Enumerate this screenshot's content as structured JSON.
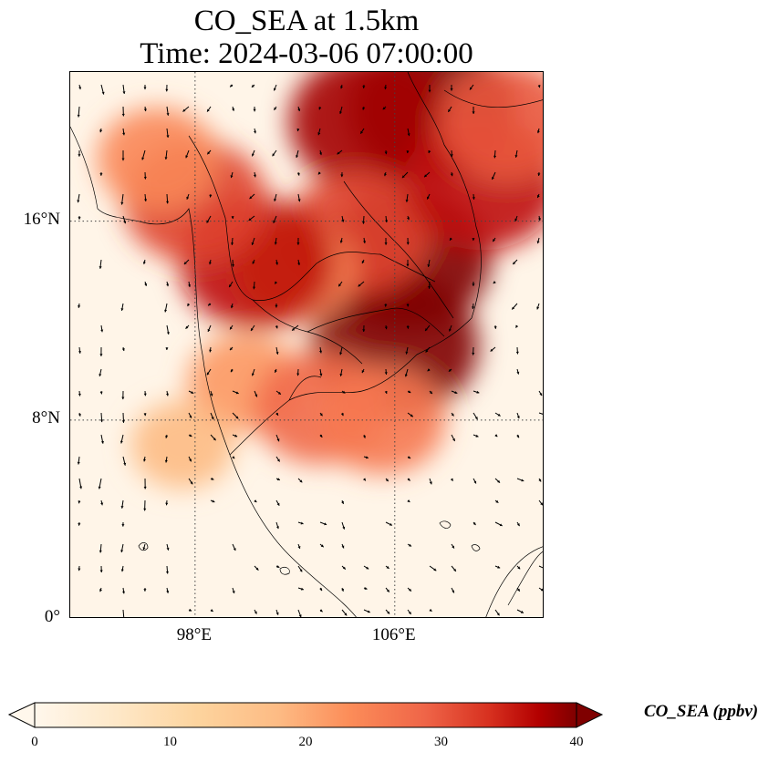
{
  "title_line_1": "CO_SEA at 1.5km",
  "title_line_2": "Time: 2024-03-06 07:00:00",
  "map": {
    "lat_range": [
      0,
      22
    ],
    "lon_range": [
      93,
      112
    ],
    "lat_ticks": [
      {
        "label": "16°N",
        "value": 16
      },
      {
        "label": "8°N",
        "value": 8
      },
      {
        "label": "0°",
        "value": 0
      }
    ],
    "lon_ticks": [
      {
        "label": "98°E",
        "value": 98
      },
      {
        "label": "106°E",
        "value": 106
      }
    ],
    "field_name": "CO_SEA",
    "colormap": "OrRd",
    "colors": {
      "low": "#fff7ec",
      "mid": "#fc8d59",
      "high": "#7f0000"
    },
    "plumes": [
      {
        "lon": 107.5,
        "lat": 20.5,
        "value": 40
      },
      {
        "lon": 105.0,
        "lat": 20.0,
        "value": 38
      },
      {
        "lon": 106.5,
        "lat": 14.5,
        "value": 40
      },
      {
        "lon": 106.0,
        "lat": 11.0,
        "value": 40
      },
      {
        "lon": 104.5,
        "lat": 15.5,
        "value": 32
      },
      {
        "lon": 102.0,
        "lat": 14.0,
        "value": 24
      },
      {
        "lon": 100.5,
        "lat": 14.3,
        "value": 36
      },
      {
        "lon": 98.0,
        "lat": 16.8,
        "value": 32
      },
      {
        "lon": 96.5,
        "lat": 18.5,
        "value": 24
      },
      {
        "lon": 100.0,
        "lat": 9.5,
        "value": 22
      },
      {
        "lon": 103.0,
        "lat": 8.5,
        "value": 28
      },
      {
        "lon": 105.5,
        "lat": 8.0,
        "value": 26
      },
      {
        "lon": 97.5,
        "lat": 7.0,
        "value": 18
      },
      {
        "lon": 109.5,
        "lat": 17.5,
        "value": 36
      },
      {
        "lon": 110.5,
        "lat": 20.0,
        "value": 30
      }
    ]
  },
  "colorbar": {
    "min": 0,
    "max": 40,
    "ticks": [
      "0",
      "10",
      "20",
      "30",
      "40"
    ],
    "label": "CO_SEA (ppbv)"
  }
}
